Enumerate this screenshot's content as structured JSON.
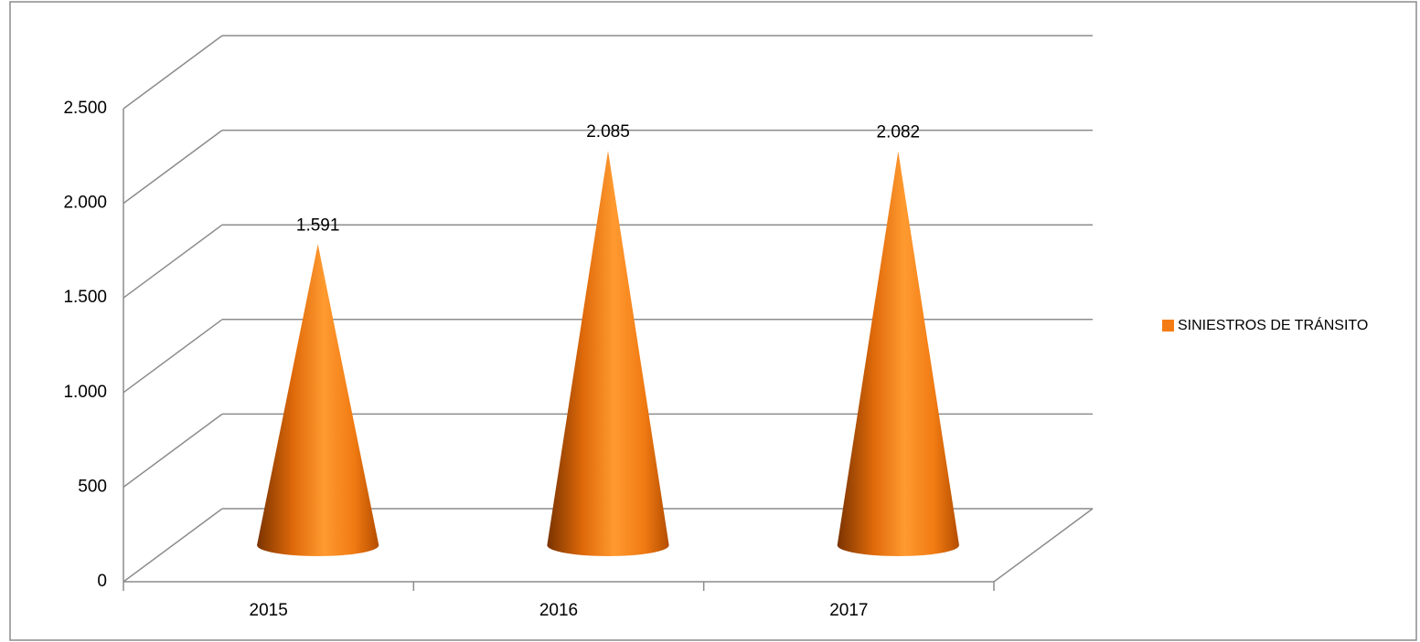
{
  "chart_data": {
    "type": "cone",
    "categories": [
      "2015",
      "2016",
      "2017"
    ],
    "series": [
      {
        "name": "SINIESTROS DE TRÁNSITO",
        "color": "#f57c14",
        "values": [
          1591,
          2085,
          2082
        ],
        "value_labels": [
          "1.591",
          "2.085",
          "2.082"
        ]
      }
    ],
    "ylim": [
      0,
      2500
    ],
    "yticks": [
      0,
      500,
      {
        "value": 1000,
        "label": "1.000"
      },
      {
        "value": 1500,
        "label": "1.500"
      },
      {
        "value": 2000,
        "label": "2.000"
      },
      {
        "value": 2500,
        "label": "2.500"
      }
    ],
    "grid": true,
    "legend": "right"
  }
}
